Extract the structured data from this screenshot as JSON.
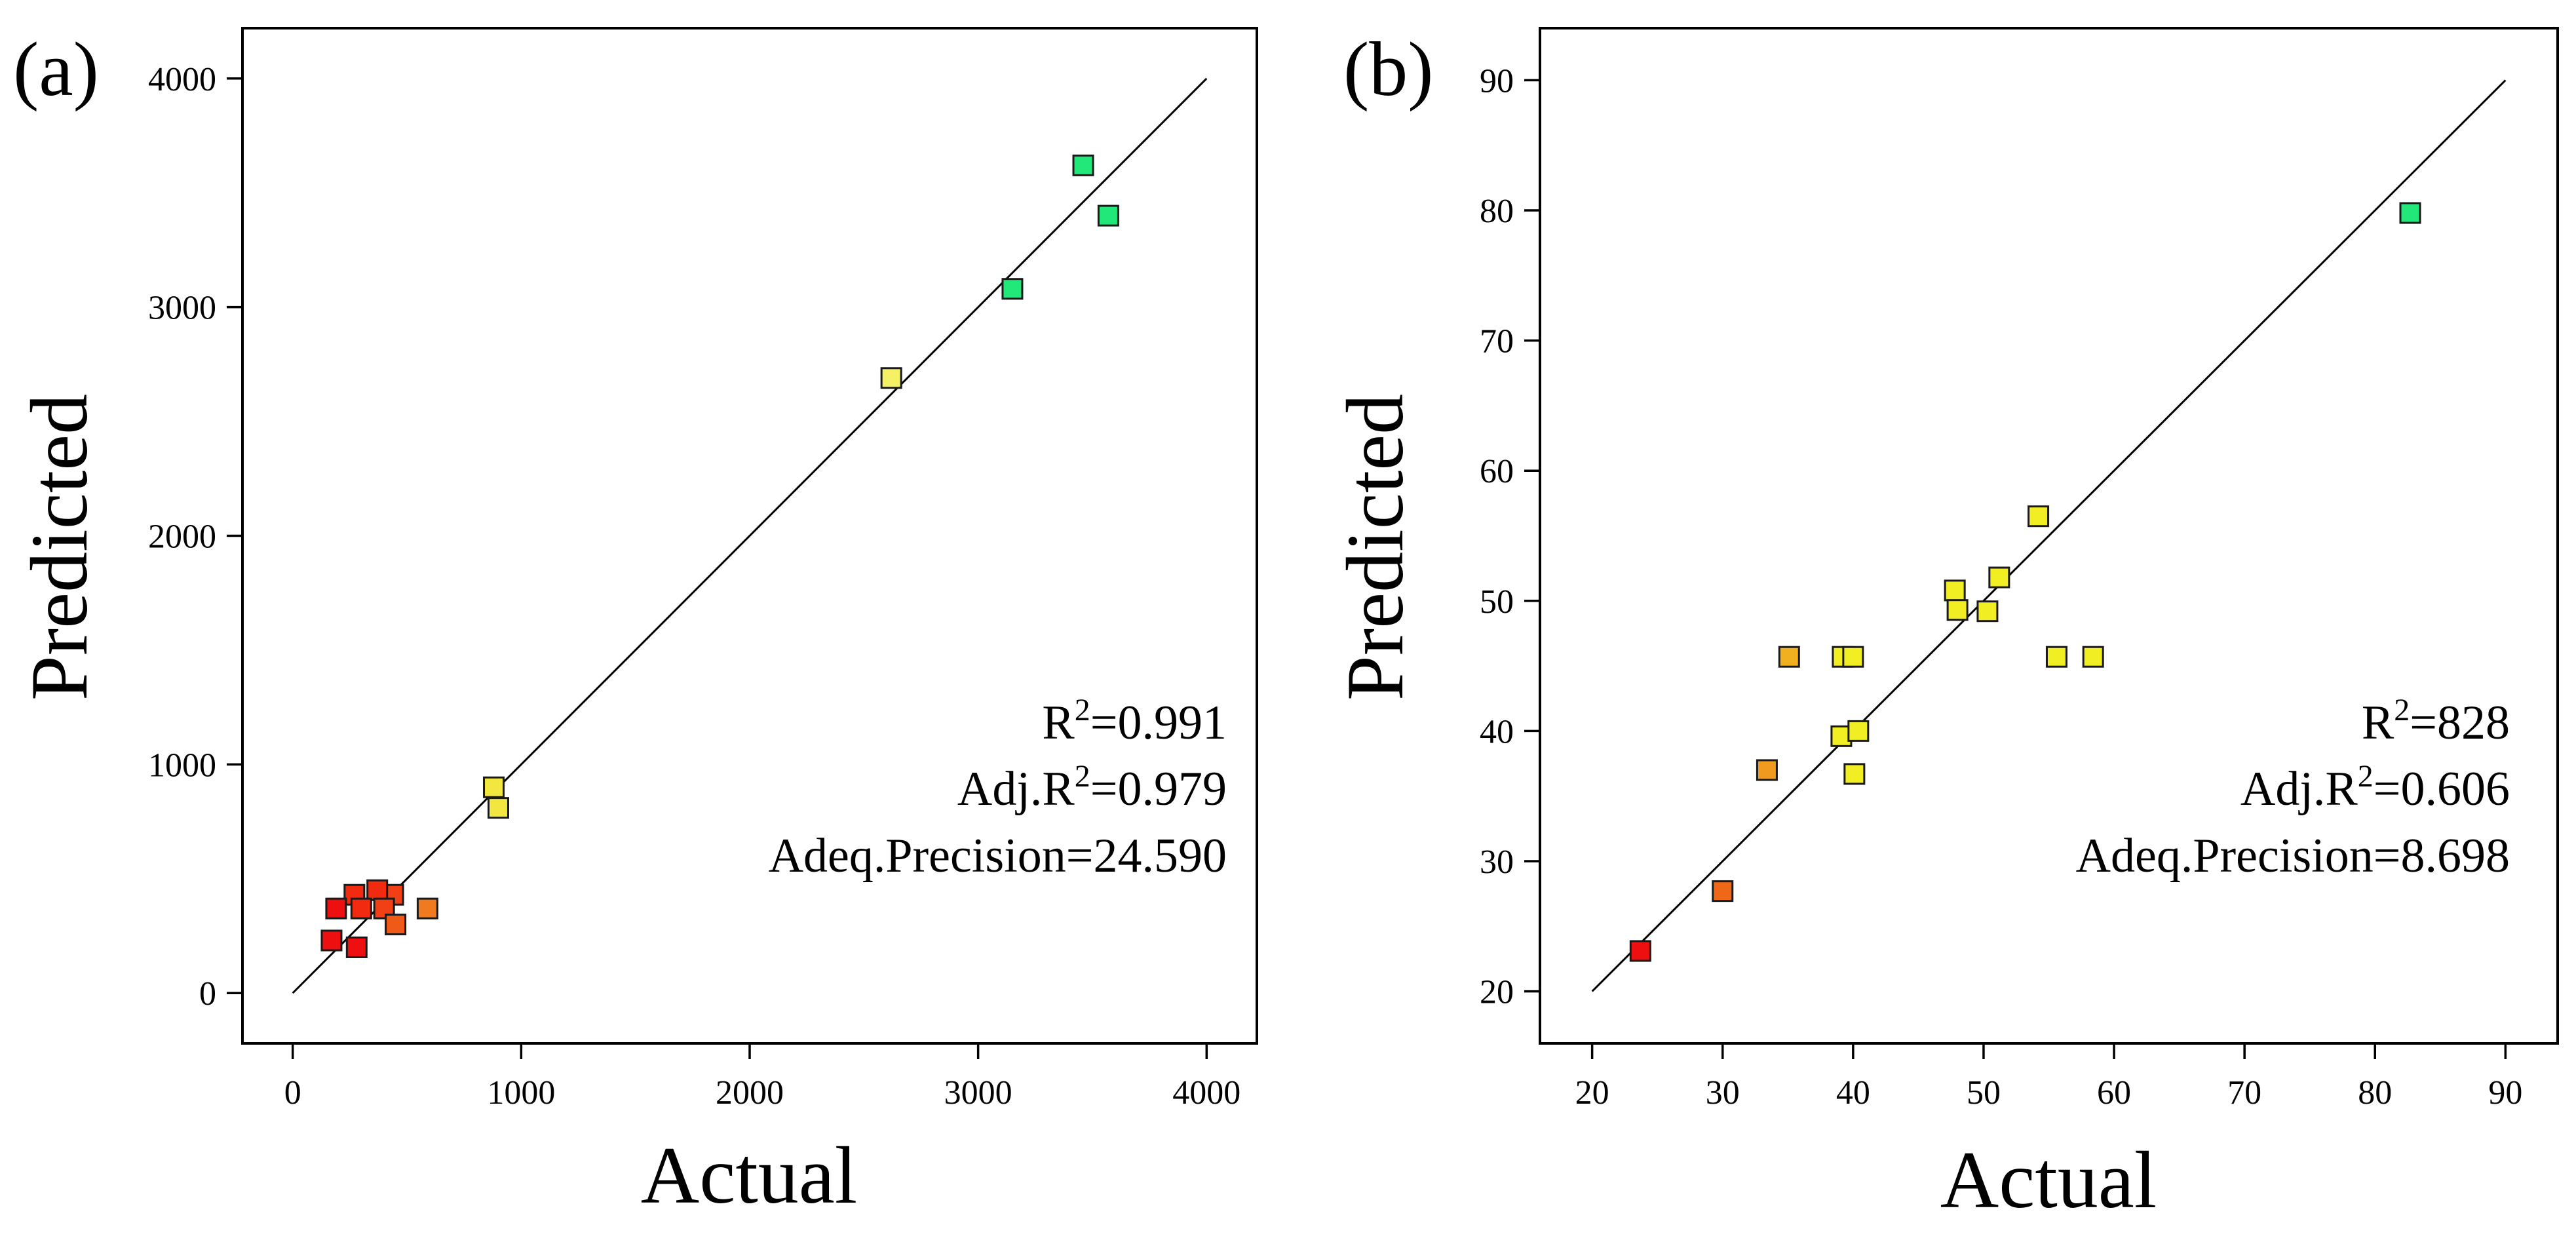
{
  "chart_data": [
    {
      "type": "scatter",
      "panel_label": "(a)",
      "xlabel": "Actual",
      "ylabel": "Predicted",
      "xlim": [
        -220,
        4220
      ],
      "ylim": [
        -220,
        4220
      ],
      "xticks": [
        0,
        1000,
        2000,
        3000,
        4000
      ],
      "yticks": [
        0,
        1000,
        2000,
        3000,
        4000
      ],
      "x_tick_labels": [
        "0",
        "1000",
        "2000",
        "3000",
        "4000"
      ],
      "y_tick_labels": [
        "0",
        "1000",
        "2000",
        "3000",
        "4000"
      ],
      "reference_line": {
        "from": [
          0,
          0
        ],
        "to": [
          4000,
          4000
        ]
      },
      "stats": {
        "r2_prefix": "R",
        "r2_value": "=0.991",
        "adj_prefix": "Adj.R",
        "adj_value": "=0.979",
        "adeq": "Adeq.Precision=24.590",
        "superscript": "2"
      },
      "points": [
        {
          "x": 3460,
          "y": 3620,
          "color": "#22e87a"
        },
        {
          "x": 3570,
          "y": 3400,
          "color": "#22e87a"
        },
        {
          "x": 3150,
          "y": 3080,
          "color": "#22e87a"
        },
        {
          "x": 2620,
          "y": 2690,
          "color": "#f4f264"
        },
        {
          "x": 880,
          "y": 900,
          "color": "#f2e640"
        },
        {
          "x": 900,
          "y": 810,
          "color": "#f2e640"
        },
        {
          "x": 590,
          "y": 370,
          "color": "#ef7a20"
        },
        {
          "x": 440,
          "y": 430,
          "color": "#f24016"
        },
        {
          "x": 370,
          "y": 450,
          "color": "#f22a10"
        },
        {
          "x": 270,
          "y": 430,
          "color": "#f22a10"
        },
        {
          "x": 190,
          "y": 370,
          "color": "#ee1010"
        },
        {
          "x": 300,
          "y": 370,
          "color": "#f22a10"
        },
        {
          "x": 400,
          "y": 370,
          "color": "#f24016"
        },
        {
          "x": 450,
          "y": 300,
          "color": "#f05a18"
        },
        {
          "x": 170,
          "y": 230,
          "color": "#ee1010"
        },
        {
          "x": 280,
          "y": 200,
          "color": "#ee1010"
        }
      ]
    },
    {
      "type": "scatter",
      "panel_label": "(b)",
      "xlabel": "Actual",
      "ylabel": "Predicted",
      "xlim": [
        16,
        94
      ],
      "ylim": [
        16,
        94
      ],
      "xticks": [
        20,
        30,
        40,
        50,
        60,
        70,
        80,
        90
      ],
      "yticks": [
        20,
        30,
        40,
        50,
        60,
        70,
        80,
        90
      ],
      "x_tick_labels": [
        "20",
        "30",
        "40",
        "50",
        "60",
        "70",
        "80",
        "90"
      ],
      "y_tick_labels": [
        "20",
        "30",
        "40",
        "50",
        "60",
        "70",
        "80",
        "90"
      ],
      "reference_line": {
        "from": [
          20,
          20
        ],
        "to": [
          90,
          90
        ]
      },
      "stats": {
        "r2_prefix": "R",
        "r2_value": "=828",
        "adj_prefix": "Adj.R",
        "adj_value": "=0.606",
        "adeq": "Adeq.Precision=8.698",
        "superscript": "2"
      },
      "points": [
        {
          "x": 82.7,
          "y": 79.8,
          "color": "#22e87a"
        },
        {
          "x": 54.2,
          "y": 56.5,
          "color": "#f2ee24"
        },
        {
          "x": 51.2,
          "y": 51.8,
          "color": "#f2ee24"
        },
        {
          "x": 47.8,
          "y": 50.8,
          "color": "#f2ee24"
        },
        {
          "x": 48.0,
          "y": 49.3,
          "color": "#f2ee24"
        },
        {
          "x": 50.3,
          "y": 49.2,
          "color": "#f2ee24"
        },
        {
          "x": 55.6,
          "y": 45.7,
          "color": "#f2ee24"
        },
        {
          "x": 58.4,
          "y": 45.7,
          "color": "#f2ee24"
        },
        {
          "x": 35.1,
          "y": 45.7,
          "color": "#f0b020"
        },
        {
          "x": 39.2,
          "y": 45.7,
          "color": "#f2ee24"
        },
        {
          "x": 40.0,
          "y": 45.7,
          "color": "#f2ee24"
        },
        {
          "x": 39.1,
          "y": 39.6,
          "color": "#f2ee24"
        },
        {
          "x": 40.4,
          "y": 40.0,
          "color": "#f2ee24"
        },
        {
          "x": 40.1,
          "y": 36.7,
          "color": "#f2ee24"
        },
        {
          "x": 33.4,
          "y": 37.0,
          "color": "#f09a20"
        },
        {
          "x": 30.0,
          "y": 27.7,
          "color": "#ee6818"
        },
        {
          "x": 23.7,
          "y": 23.1,
          "color": "#ee1010"
        }
      ]
    }
  ]
}
